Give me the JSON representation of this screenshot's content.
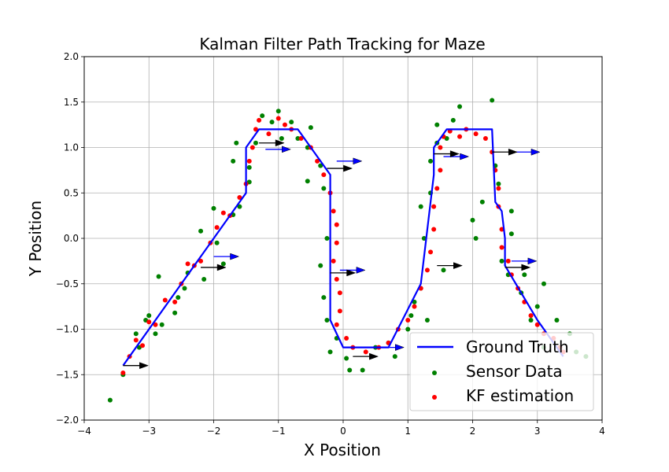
{
  "chart_data": {
    "type": "line",
    "title": "Kalman Filter Path Tracking for Maze",
    "xlabel": "X Position",
    "ylabel": "Y Position",
    "xlim": [
      -4,
      4
    ],
    "ylim": [
      -2,
      2
    ],
    "xticks": [
      -4,
      -3,
      -2,
      -1,
      0,
      1,
      2,
      3,
      4
    ],
    "yticks": [
      -2.0,
      -1.5,
      -1.0,
      -0.5,
      0.0,
      0.5,
      1.0,
      1.5,
      2.0
    ],
    "xtick_labels": [
      "−4",
      "−3",
      "−2",
      "−1",
      "0",
      "1",
      "2",
      "3",
      "4"
    ],
    "ytick_labels": [
      "−2.0",
      "−1.5",
      "−1.0",
      "−0.5",
      "0.0",
      "0.5",
      "1.0",
      "1.5",
      "2.0"
    ],
    "grid": true,
    "legend": {
      "position": "lower right"
    },
    "series": [
      {
        "name": "Ground Truth",
        "kind": "line",
        "color": "#0000ff",
        "points": [
          [
            -3.4,
            -1.4
          ],
          [
            -1.5,
            0.5
          ],
          [
            -1.5,
            1.0
          ],
          [
            -1.3,
            1.2
          ],
          [
            -0.7,
            1.2
          ],
          [
            -0.2,
            0.7
          ],
          [
            -0.2,
            -0.9
          ],
          [
            0.0,
            -1.2
          ],
          [
            0.7,
            -1.2
          ],
          [
            1.2,
            -0.5
          ],
          [
            1.4,
            0.7
          ],
          [
            1.4,
            1.0
          ],
          [
            1.6,
            1.2
          ],
          [
            2.3,
            1.2
          ],
          [
            2.35,
            0.4
          ],
          [
            2.45,
            0.3
          ],
          [
            2.5,
            0.0
          ],
          [
            2.5,
            -0.3
          ],
          [
            3.0,
            -0.9
          ],
          [
            3.4,
            -1.3
          ]
        ]
      },
      {
        "name": "Sensor Data",
        "kind": "scatter",
        "color": "#008000",
        "points": [
          [
            -3.6,
            -1.78
          ],
          [
            -3.4,
            -1.5
          ],
          [
            -3.2,
            -1.05
          ],
          [
            -3.15,
            -1.2
          ],
          [
            -3.05,
            -0.9
          ],
          [
            -3.0,
            -0.85
          ],
          [
            -2.9,
            -1.05
          ],
          [
            -2.85,
            -0.42
          ],
          [
            -2.8,
            -0.95
          ],
          [
            -2.6,
            -0.82
          ],
          [
            -2.55,
            -0.65
          ],
          [
            -2.45,
            -0.55
          ],
          [
            -2.4,
            -0.38
          ],
          [
            -2.2,
            0.08
          ],
          [
            -2.15,
            -0.45
          ],
          [
            -2.0,
            0.33
          ],
          [
            -1.95,
            -0.05
          ],
          [
            -1.85,
            -0.28
          ],
          [
            -1.7,
            0.26
          ],
          [
            -1.6,
            0.35
          ],
          [
            -1.7,
            0.85
          ],
          [
            -1.65,
            1.05
          ],
          [
            -1.45,
            0.62
          ],
          [
            -1.45,
            0.78
          ],
          [
            -1.35,
            1.05
          ],
          [
            -1.25,
            1.35
          ],
          [
            -1.1,
            1.28
          ],
          [
            -1.0,
            1.4
          ],
          [
            -0.95,
            1.1
          ],
          [
            -0.8,
            1.28
          ],
          [
            -0.7,
            1.1
          ],
          [
            -0.55,
            1.0
          ],
          [
            -0.5,
            1.22
          ],
          [
            -0.55,
            0.63
          ],
          [
            -0.35,
            0.8
          ],
          [
            -0.3,
            0.55
          ],
          [
            -0.25,
            0.0
          ],
          [
            -0.35,
            -0.3
          ],
          [
            -0.3,
            -0.65
          ],
          [
            -0.25,
            -0.9
          ],
          [
            -0.2,
            -1.25
          ],
          [
            -0.1,
            -1.1
          ],
          [
            0.05,
            -1.32
          ],
          [
            0.1,
            -1.45
          ],
          [
            0.3,
            -1.45
          ],
          [
            0.5,
            -1.2
          ],
          [
            0.7,
            -1.15
          ],
          [
            0.8,
            -1.3
          ],
          [
            1.0,
            -1.0
          ],
          [
            1.05,
            -0.85
          ],
          [
            1.1,
            -0.7
          ],
          [
            1.2,
            -0.55
          ],
          [
            1.2,
            0.35
          ],
          [
            1.25,
            0.0
          ],
          [
            1.3,
            -0.9
          ],
          [
            1.35,
            0.5
          ],
          [
            1.35,
            0.85
          ],
          [
            1.45,
            1.05
          ],
          [
            1.45,
            1.25
          ],
          [
            1.55,
            -0.35
          ],
          [
            1.6,
            1.1
          ],
          [
            1.7,
            1.3
          ],
          [
            1.8,
            1.45
          ],
          [
            2.0,
            0.2
          ],
          [
            2.05,
            0.0
          ],
          [
            2.15,
            0.4
          ],
          [
            2.3,
            1.52
          ],
          [
            2.35,
            0.8
          ],
          [
            2.4,
            0.6
          ],
          [
            2.45,
            -0.25
          ],
          [
            2.55,
            -0.4
          ],
          [
            2.6,
            0.3
          ],
          [
            2.6,
            0.05
          ],
          [
            2.75,
            -0.6
          ],
          [
            2.8,
            -0.4
          ],
          [
            2.9,
            -0.9
          ],
          [
            3.0,
            -0.75
          ],
          [
            3.1,
            -0.5
          ],
          [
            3.1,
            -1.2
          ],
          [
            3.3,
            -0.9
          ],
          [
            3.5,
            -1.05
          ],
          [
            3.6,
            -1.25
          ],
          [
            3.75,
            -1.3
          ]
        ]
      },
      {
        "name": "KF estimation",
        "kind": "scatter",
        "color": "#ff0000",
        "points": [
          [
            -3.4,
            -1.48
          ],
          [
            -3.3,
            -1.3
          ],
          [
            -3.2,
            -1.12
          ],
          [
            -3.1,
            -1.18
          ],
          [
            -3.0,
            -0.92
          ],
          [
            -2.9,
            -0.95
          ],
          [
            -2.75,
            -0.68
          ],
          [
            -2.6,
            -0.7
          ],
          [
            -2.5,
            -0.5
          ],
          [
            -2.4,
            -0.28
          ],
          [
            -2.3,
            -0.3
          ],
          [
            -2.2,
            -0.25
          ],
          [
            -2.05,
            -0.05
          ],
          [
            -1.95,
            0.12
          ],
          [
            -1.85,
            0.28
          ],
          [
            -1.75,
            0.25
          ],
          [
            -1.6,
            0.45
          ],
          [
            -1.5,
            0.6
          ],
          [
            -1.45,
            0.85
          ],
          [
            -1.4,
            1.0
          ],
          [
            -1.35,
            1.2
          ],
          [
            -1.3,
            1.3
          ],
          [
            -1.15,
            1.15
          ],
          [
            -1.0,
            1.32
          ],
          [
            -0.9,
            1.25
          ],
          [
            -0.8,
            1.2
          ],
          [
            -0.65,
            1.1
          ],
          [
            -0.5,
            1.0
          ],
          [
            -0.4,
            0.85
          ],
          [
            -0.3,
            0.7
          ],
          [
            -0.2,
            0.5
          ],
          [
            -0.15,
            0.3
          ],
          [
            -0.1,
            0.15
          ],
          [
            -0.1,
            -0.05
          ],
          [
            -0.15,
            -0.25
          ],
          [
            -0.1,
            -0.45
          ],
          [
            -0.05,
            -0.6
          ],
          [
            -0.05,
            -0.8
          ],
          [
            -0.1,
            -0.95
          ],
          [
            0.05,
            -1.1
          ],
          [
            0.15,
            -1.2
          ],
          [
            0.35,
            -1.25
          ],
          [
            0.55,
            -1.2
          ],
          [
            0.7,
            -1.15
          ],
          [
            0.85,
            -1.0
          ],
          [
            1.0,
            -0.9
          ],
          [
            1.1,
            -0.75
          ],
          [
            1.2,
            -0.55
          ],
          [
            1.3,
            -0.35
          ],
          [
            1.35,
            -0.15
          ],
          [
            1.4,
            0.1
          ],
          [
            1.4,
            0.35
          ],
          [
            1.45,
            0.55
          ],
          [
            1.5,
            0.75
          ],
          [
            1.5,
            1.0
          ],
          [
            1.55,
            1.12
          ],
          [
            1.65,
            1.18
          ],
          [
            1.8,
            1.12
          ],
          [
            1.9,
            1.2
          ],
          [
            2.05,
            1.15
          ],
          [
            2.2,
            1.1
          ],
          [
            2.3,
            0.95
          ],
          [
            2.35,
            0.75
          ],
          [
            2.4,
            0.55
          ],
          [
            2.4,
            0.35
          ],
          [
            2.45,
            0.1
          ],
          [
            2.45,
            -0.1
          ],
          [
            2.55,
            -0.25
          ],
          [
            2.6,
            -0.4
          ],
          [
            2.7,
            -0.55
          ],
          [
            2.8,
            -0.7
          ],
          [
            2.9,
            -0.85
          ],
          [
            3.0,
            -0.95
          ],
          [
            3.1,
            -1.05
          ],
          [
            3.25,
            -1.1
          ],
          [
            3.35,
            -1.2
          ],
          [
            3.4,
            -1.25
          ]
        ]
      }
    ],
    "arrows": {
      "ground_truth": [
        [
          -1.2,
          0.98
        ],
        [
          -0.1,
          0.85
        ],
        [
          -0.05,
          -0.35
        ],
        [
          0.55,
          -1.2
        ],
        [
          1.55,
          0.9
        ],
        [
          2.65,
          0.95
        ],
        [
          2.6,
          -0.25
        ],
        [
          -2.0,
          -0.2
        ]
      ],
      "estimation": [
        [
          -3.4,
          -1.4
        ],
        [
          -2.2,
          -0.32
        ],
        [
          -1.3,
          1.05
        ],
        [
          -0.25,
          0.77
        ],
        [
          -0.2,
          -0.38
        ],
        [
          0.15,
          -1.3
        ],
        [
          1.4,
          0.93
        ],
        [
          1.45,
          -0.3
        ],
        [
          2.3,
          0.95
        ],
        [
          2.5,
          -0.32
        ]
      ]
    }
  },
  "legend_items": [
    {
      "label": "Ground Truth",
      "color": "#0000ff",
      "kind": "line"
    },
    {
      "label": "Sensor Data",
      "color": "#008000",
      "kind": "dot"
    },
    {
      "label": "KF estimation",
      "color": "#ff0000",
      "kind": "dot"
    }
  ]
}
